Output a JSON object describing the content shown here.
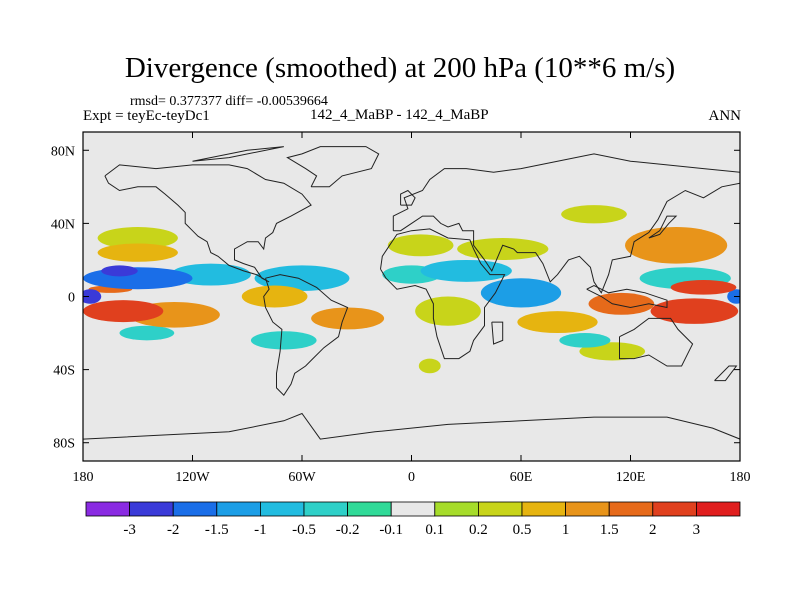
{
  "header": {
    "rmsd_text": "rmsd= 0.377377 diff= -0.00539664",
    "expt_text": "Expt = teyEc-teyDc1",
    "center_text": "142_4_MaBP - 142_4_MaBP",
    "season_text": "ANN"
  },
  "chart_data": {
    "type": "heatmap",
    "title": "Divergence (smoothed) at 200 hPa (10**6 m/s)",
    "xlabel": "",
    "ylabel": "",
    "xlim": [
      -180,
      180
    ],
    "ylim": [
      -90,
      90
    ],
    "x_ticks": [
      {
        "value": -180,
        "label": "180"
      },
      {
        "value": -120,
        "label": "120W"
      },
      {
        "value": -60,
        "label": "60W"
      },
      {
        "value": 0,
        "label": "0"
      },
      {
        "value": 60,
        "label": "60E"
      },
      {
        "value": 120,
        "label": "120E"
      },
      {
        "value": 180,
        "label": "180"
      }
    ],
    "y_ticks": [
      {
        "value": 80,
        "label": "80N"
      },
      {
        "value": 40,
        "label": "40N"
      },
      {
        "value": 0,
        "label": "0"
      },
      {
        "value": -40,
        "label": "40S"
      },
      {
        "value": -80,
        "label": "80S"
      }
    ],
    "colorbar": {
      "boundaries": [
        "-3",
        "-2",
        "-1.5",
        "-1",
        "-0.5",
        "-0.2",
        "-0.1",
        "0.1",
        "0.2",
        "0.5",
        "1",
        "1.5",
        "2",
        "3"
      ],
      "colors": [
        "#8a2be2",
        "#3a3ad8",
        "#1a6ee8",
        "#1c9ee6",
        "#22bce0",
        "#2ed0c8",
        "#30da98",
        "#e8e8e8",
        "#a6dc2a",
        "#c8d41a",
        "#e6b410",
        "#e8941a",
        "#e66a1a",
        "#e0401e",
        "#e01e1e"
      ]
    },
    "field_blobs": [
      {
        "lon": -176,
        "lat": 0,
        "rlon": 6,
        "rlat": 4,
        "value": -3
      },
      {
        "lon": -150,
        "lat": 10,
        "rlon": 30,
        "rlat": 6,
        "value": -1.8
      },
      {
        "lon": -160,
        "lat": 14,
        "rlon": 10,
        "rlat": 3,
        "value": -2.2
      },
      {
        "lon": -110,
        "lat": 12,
        "rlon": 22,
        "rlat": 6,
        "value": -0.8
      },
      {
        "lon": -60,
        "lat": 10,
        "rlon": 26,
        "rlat": 7,
        "value": -0.8
      },
      {
        "lon": 60,
        "lat": 2,
        "rlon": 22,
        "rlat": 8,
        "value": -1.2
      },
      {
        "lon": 30,
        "lat": 14,
        "rlon": 25,
        "rlat": 6,
        "value": -0.8
      },
      {
        "lon": 0,
        "lat": 12,
        "rlon": 16,
        "rlat": 5,
        "value": -0.5
      },
      {
        "lon": 150,
        "lat": 10,
        "rlon": 25,
        "rlat": 6,
        "value": -0.5
      },
      {
        "lon": 178,
        "lat": 0,
        "rlon": 5,
        "rlat": 4,
        "value": -2
      },
      {
        "lon": -150,
        "lat": 24,
        "rlon": 22,
        "rlat": 5,
        "value": 0.5
      },
      {
        "lon": -158,
        "lat": -8,
        "rlon": 22,
        "rlat": 6,
        "value": 2.6
      },
      {
        "lon": -130,
        "lat": -10,
        "rlon": 25,
        "rlat": 7,
        "value": 1.2
      },
      {
        "lon": -165,
        "lat": 4,
        "rlon": 12,
        "rlat": 2,
        "value": 1.7
      },
      {
        "lon": -75,
        "lat": 0,
        "rlon": 18,
        "rlat": 6,
        "value": 0.8
      },
      {
        "lon": 155,
        "lat": -8,
        "rlon": 24,
        "rlat": 7,
        "value": 2.5
      },
      {
        "lon": 115,
        "lat": -4,
        "rlon": 18,
        "rlat": 6,
        "value": 1.7
      },
      {
        "lon": 160,
        "lat": 5,
        "rlon": 18,
        "rlat": 4,
        "value": 2.2
      },
      {
        "lon": 145,
        "lat": 28,
        "rlon": 28,
        "rlat": 10,
        "value": 1.1
      },
      {
        "lon": 50,
        "lat": 26,
        "rlon": 25,
        "rlat": 6,
        "value": 0.3
      },
      {
        "lon": 5,
        "lat": 28,
        "rlon": 18,
        "rlat": 6,
        "value": 0.4
      },
      {
        "lon": -35,
        "lat": -12,
        "rlon": 20,
        "rlat": 6,
        "value": 1.1
      },
      {
        "lon": 20,
        "lat": -8,
        "rlon": 18,
        "rlat": 8,
        "value": 0.4
      },
      {
        "lon": 80,
        "lat": -14,
        "rlon": 22,
        "rlat": 6,
        "value": 0.6
      },
      {
        "lon": 110,
        "lat": -30,
        "rlon": 18,
        "rlat": 5,
        "value": 0.3
      },
      {
        "lon": -150,
        "lat": 32,
        "rlon": 22,
        "rlat": 6,
        "value": 0.3
      },
      {
        "lon": 100,
        "lat": 45,
        "rlon": 18,
        "rlat": 5,
        "value": 0.25
      },
      {
        "lon": 10,
        "lat": -38,
        "rlon": 6,
        "rlat": 4,
        "value": 0.4
      },
      {
        "lon": -145,
        "lat": -20,
        "rlon": 15,
        "rlat": 4,
        "value": -0.35
      },
      {
        "lon": -70,
        "lat": -24,
        "rlon": 18,
        "rlat": 5,
        "value": -0.3
      },
      {
        "lon": 95,
        "lat": -24,
        "rlon": 14,
        "rlat": 4,
        "value": -0.3
      }
    ]
  }
}
